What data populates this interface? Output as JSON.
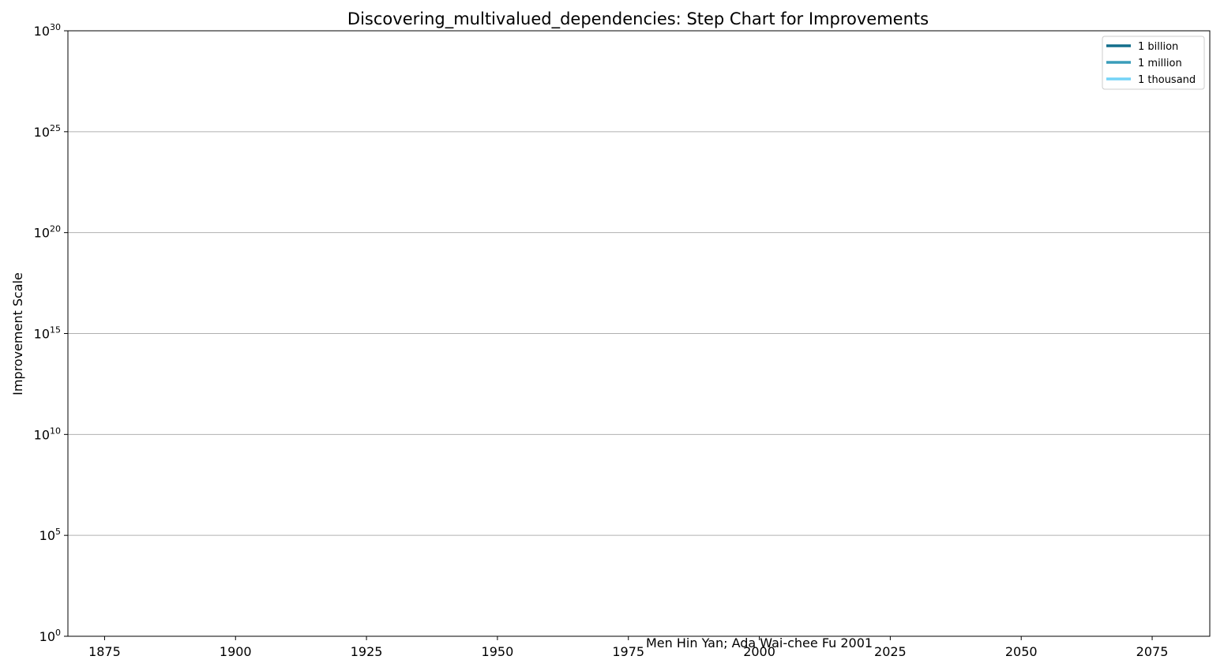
{
  "chart_data": {
    "type": "line",
    "title": "Discovering_multivalued_dependencies: Step Chart for Improvements",
    "xlabel": "",
    "ylabel": "Improvement Scale",
    "xlim": [
      1868,
      2086
    ],
    "ylim": [
      0,
      30
    ],
    "y_scale": "log10",
    "grid": "y-major",
    "x_ticks": [
      "1875",
      "1900",
      "1925",
      "1950",
      "1975",
      "2000",
      "2025",
      "2050",
      "2075"
    ],
    "y_ticks": [
      {
        "base": "10",
        "exp": "0"
      },
      {
        "base": "10",
        "exp": "5"
      },
      {
        "base": "10",
        "exp": "10"
      },
      {
        "base": "10",
        "exp": "15"
      },
      {
        "base": "10",
        "exp": "20"
      },
      {
        "base": "10",
        "exp": "25"
      },
      {
        "base": "10",
        "exp": "30"
      }
    ],
    "legend_position": "top-right",
    "series": [
      {
        "name": "1 billion",
        "color": "#136f8c",
        "values": [],
        "y_exp": 9
      },
      {
        "name": "1 million",
        "color": "#3a9dba",
        "values": [],
        "y_exp": 6
      },
      {
        "name": "1 thousand",
        "color": "#74d3f7",
        "values": [],
        "y_exp": 3
      }
    ],
    "annotation": {
      "text": "Men Hin Yan; Ada Wai-chee Fu 2001",
      "x": 2000,
      "y_exp": 0
    }
  }
}
